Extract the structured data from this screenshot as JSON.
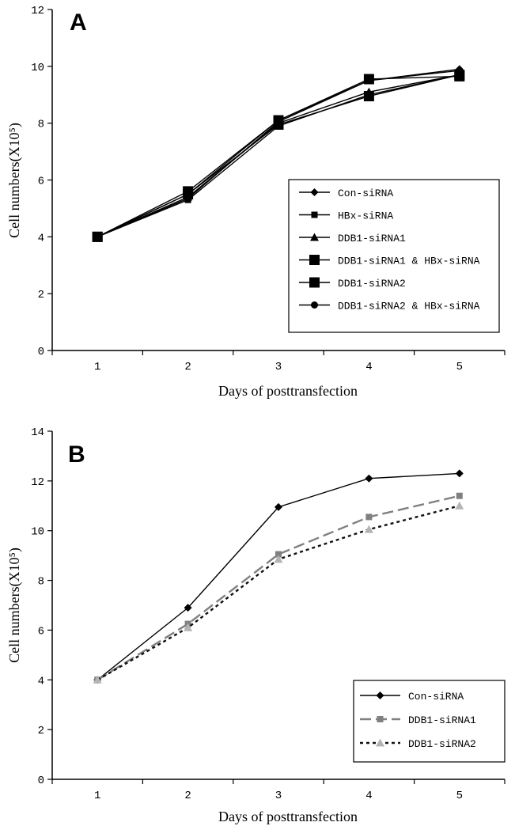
{
  "chart_data": [
    {
      "type": "line",
      "panel_label": "A",
      "xlabel": "Days of posttransfection",
      "ylabel": "Cell numbers(X10⁵)",
      "x": [
        1,
        2,
        3,
        4,
        5
      ],
      "ylim": [
        0,
        12
      ],
      "yticks": [
        0,
        2,
        4,
        6,
        8,
        10,
        12
      ],
      "grid": false,
      "legend_position": "center-right",
      "series": [
        {
          "name": "Con-siRNA",
          "values": [
            4.0,
            5.5,
            8.1,
            9.5,
            9.9
          ],
          "marker": "diamond",
          "color": "#000000",
          "dash": "solid"
        },
        {
          "name": "HBx-siRNA",
          "values": [
            4.0,
            5.3,
            7.9,
            9.0,
            9.7
          ],
          "marker": "square",
          "color": "#000000",
          "dash": "solid"
        },
        {
          "name": "DDB1-siRNA1",
          "values": [
            4.0,
            5.4,
            8.0,
            9.1,
            9.7
          ],
          "marker": "triangle",
          "color": "#000000",
          "dash": "solid"
        },
        {
          "name": "DDB1-siRNA1 & HBx-siRNA",
          "values": [
            4.0,
            5.6,
            8.1,
            9.55,
            9.65
          ],
          "marker": "square-large",
          "color": "#000000",
          "dash": "solid"
        },
        {
          "name": "DDB1-siRNA2",
          "values": [
            4.0,
            5.5,
            7.95,
            8.95,
            9.7
          ],
          "marker": "square-large",
          "color": "#000000",
          "dash": "solid"
        },
        {
          "name": "DDB1-siRNA2 & HBx-siRNA",
          "values": [
            4.0,
            5.35,
            8.05,
            9.5,
            9.85
          ],
          "marker": "circle",
          "color": "#000000",
          "dash": "solid"
        }
      ]
    },
    {
      "type": "line",
      "panel_label": "B",
      "xlabel": "Days of posttransfection",
      "ylabel": "Cell numbers(X10⁵)",
      "x": [
        1,
        2,
        3,
        4,
        5
      ],
      "ylim": [
        0,
        14
      ],
      "yticks": [
        0,
        2,
        4,
        6,
        8,
        10,
        12,
        14
      ],
      "grid": false,
      "legend_position": "bottom-right",
      "series": [
        {
          "name": "Con-siRNA",
          "values": [
            4.0,
            6.9,
            10.95,
            12.1,
            12.3
          ],
          "marker": "diamond",
          "color": "#000000",
          "dash": "solid"
        },
        {
          "name": "DDB1-siRNA1",
          "values": [
            4.0,
            6.25,
            9.05,
            10.55,
            11.4
          ],
          "marker": "square",
          "color": "#808080",
          "dash": "dashed"
        },
        {
          "name": "DDB1-siRNA2",
          "values": [
            4.0,
            6.1,
            8.85,
            10.05,
            11.0
          ],
          "marker": "triangle",
          "color": "#111111",
          "dash": "dotted",
          "marker_color": "#b4b4b4"
        }
      ]
    }
  ]
}
